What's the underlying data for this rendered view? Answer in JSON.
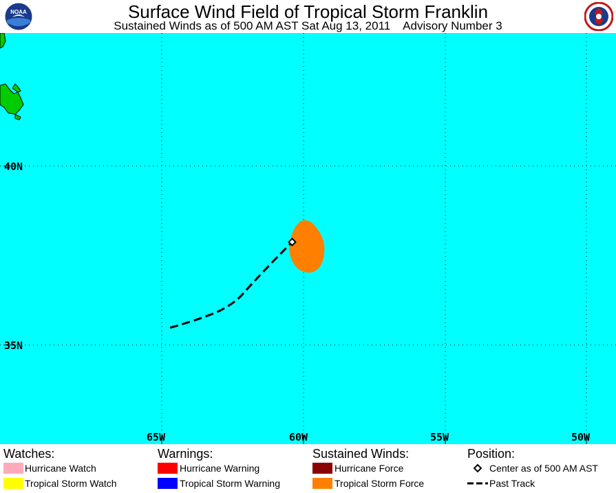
{
  "header": {
    "title": "Surface Wind Field of Tropical Storm Franklin",
    "subtitle": "Sustained Winds as of 500 AM AST Sat Aug 13, 2011    Advisory Number 3",
    "left_logo": {
      "text": "NOAA",
      "icon": "noaa-logo"
    },
    "right_logo": {
      "icon": "nws-logo"
    }
  },
  "map": {
    "lat_labels": [
      "40N",
      "35N"
    ],
    "lon_labels": [
      "65W",
      "60W",
      "55W",
      "50W"
    ],
    "colors": {
      "ocean": "#00ffff",
      "land": "#00cc00",
      "wind_field": "#ff8000",
      "track": "#000000"
    }
  },
  "legend": {
    "watches": {
      "heading": "Watches:",
      "items": [
        {
          "label": "Hurricane Watch",
          "color": "#ffaaba"
        },
        {
          "label": "Tropical Storm Watch",
          "color": "#ffff00"
        }
      ]
    },
    "warnings": {
      "heading": "Warnings:",
      "items": [
        {
          "label": "Hurricane Warning",
          "color": "#ff0000"
        },
        {
          "label": "Tropical Storm Warning",
          "color": "#0000ff"
        }
      ]
    },
    "winds": {
      "heading": "Sustained Winds:",
      "items": [
        {
          "label": "Hurricane Force",
          "color": "#8b0000"
        },
        {
          "label": "Tropical Storm Force",
          "color": "#ff8000"
        }
      ]
    },
    "position": {
      "heading": "Position:",
      "items": [
        {
          "label": "Center as of 500 AM AST",
          "icon": "center-diamond-icon"
        },
        {
          "label": "Past Track",
          "icon": "past-track-icon"
        }
      ]
    }
  }
}
